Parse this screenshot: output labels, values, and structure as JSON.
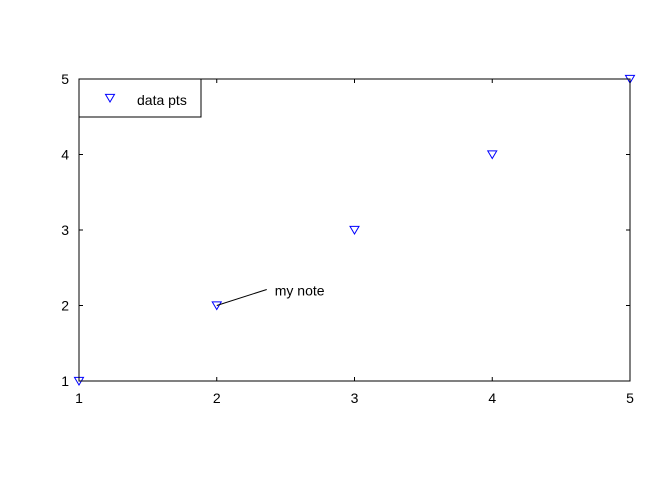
{
  "chart_data": {
    "type": "scatter",
    "title": "",
    "xlabel": "",
    "ylabel": "",
    "xlim": [
      1,
      5
    ],
    "ylim": [
      1,
      5
    ],
    "xticks": [
      1,
      2,
      3,
      4,
      5
    ],
    "yticks": [
      1,
      2,
      3,
      4,
      5
    ],
    "xtick_labels": [
      "1",
      "2",
      "3",
      "4",
      "5"
    ],
    "ytick_labels": [
      "1",
      "2",
      "3",
      "4",
      "5"
    ],
    "grid": false,
    "series": [
      {
        "name": "data pts",
        "marker": "triangle-down",
        "color": "#0000ff",
        "x": [
          1,
          2,
          3,
          4,
          5
        ],
        "y": [
          1,
          2,
          3,
          4,
          5
        ]
      }
    ],
    "legend": {
      "position": "top-left",
      "entries": [
        "data pts"
      ]
    },
    "annotations": [
      {
        "text": "my note",
        "x": 2,
        "y": 2
      }
    ]
  }
}
